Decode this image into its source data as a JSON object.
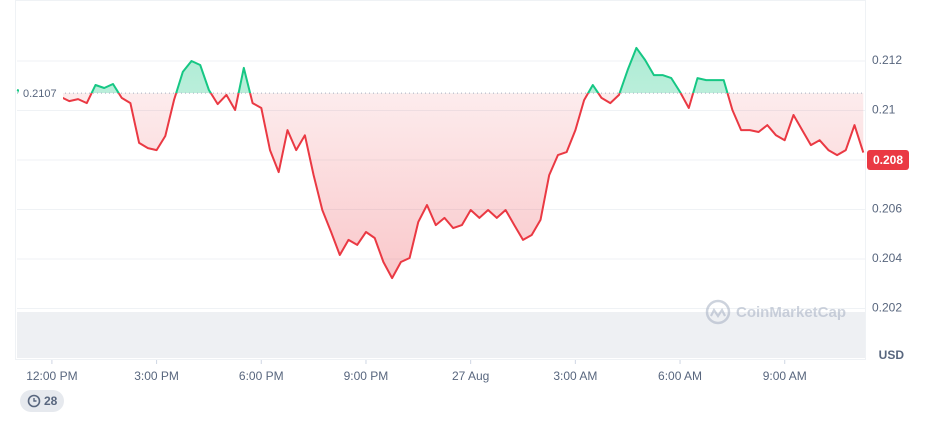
{
  "chart_data": {
    "type": "line",
    "x": [
      11,
      11.25,
      11.5,
      11.75,
      12,
      12.25,
      12.5,
      12.75,
      13,
      13.25,
      13.5,
      13.75,
      14,
      14.25,
      14.5,
      14.75,
      15,
      15.25,
      15.5,
      15.75,
      16,
      16.25,
      16.5,
      16.75,
      17,
      17.25,
      17.5,
      17.75,
      18,
      18.25,
      18.5,
      18.75,
      19,
      19.25,
      19.5,
      19.75,
      20,
      20.25,
      20.5,
      20.75,
      21,
      21.25,
      21.5,
      21.75,
      22,
      22.25,
      22.5,
      22.75,
      23,
      23.25,
      23.5,
      23.75,
      24,
      24.25,
      24.5,
      24.75,
      25,
      25.25,
      25.5,
      25.75,
      26,
      26.25,
      26.5,
      26.75,
      27,
      27.25,
      27.5,
      27.75,
      28,
      28.25,
      28.5,
      28.75,
      29,
      29.25,
      29.5,
      29.75,
      30,
      30.25,
      30.5,
      30.75,
      31,
      31.25,
      31.5,
      31.75,
      32,
      32.25,
      32.5,
      32.75,
      33,
      33.25,
      33.5,
      33.75,
      34,
      34.25,
      34.5,
      34.75,
      35,
      35.25
    ],
    "values": [
      0.21083,
      0.21071,
      0.21059,
      0.21055,
      0.21063,
      0.21055,
      0.21038,
      0.21046,
      0.2103,
      0.21103,
      0.21091,
      0.21107,
      0.21051,
      0.2103,
      0.20869,
      0.20848,
      0.2084,
      0.20897,
      0.21042,
      0.21156,
      0.212,
      0.21184,
      0.21083,
      0.21026,
      0.21063,
      0.21002,
      0.21172,
      0.2103,
      0.2101,
      0.2084,
      0.20751,
      0.20921,
      0.2084,
      0.209,
      0.20739,
      0.20598,
      0.20509,
      0.20416,
      0.20477,
      0.20457,
      0.20509,
      0.20485,
      0.20388,
      0.20323,
      0.20388,
      0.20404,
      0.2055,
      0.20618,
      0.20537,
      0.20566,
      0.20525,
      0.20537,
      0.20598,
      0.20566,
      0.20598,
      0.20566,
      0.20598,
      0.20537,
      0.20477,
      0.20497,
      0.20558,
      0.20739,
      0.2082,
      0.20832,
      0.20921,
      0.21042,
      0.21103,
      0.21051,
      0.2103,
      0.21063,
      0.21164,
      0.21253,
      0.21204,
      0.21143,
      0.21143,
      0.21131,
      0.21075,
      0.2101,
      0.21131,
      0.21123,
      0.21123,
      0.21123,
      0.21002,
      0.20921,
      0.20921,
      0.20913,
      0.20941,
      0.209,
      0.2088,
      0.20982,
      0.20921,
      0.2086,
      0.2088,
      0.2084,
      0.2082,
      0.2084,
      0.20941,
      0.2083
    ],
    "baseline": 0.2107,
    "current_price": 0.208,
    "up_color": "#16c784",
    "down_color": "#ea3943",
    "xlim": [
      11,
      35.3
    ],
    "ylim": [
      0.2,
      0.214
    ],
    "xticks": [
      {
        "value": 12,
        "label": "12:00 PM"
      },
      {
        "value": 15,
        "label": "3:00 PM"
      },
      {
        "value": 18,
        "label": "6:00 PM"
      },
      {
        "value": 21,
        "label": "9:00 PM"
      },
      {
        "value": 24,
        "label": "27 Aug"
      },
      {
        "value": 27,
        "label": "3:00 AM"
      },
      {
        "value": 30,
        "label": "6:00 AM"
      },
      {
        "value": 33,
        "label": "9:00 AM"
      }
    ],
    "yticks": [
      0.202,
      0.204,
      0.206,
      0.208,
      0.21,
      0.212
    ],
    "grid": true,
    "currency": "USD",
    "watermark": "CoinMarketCap",
    "badge": "28"
  }
}
